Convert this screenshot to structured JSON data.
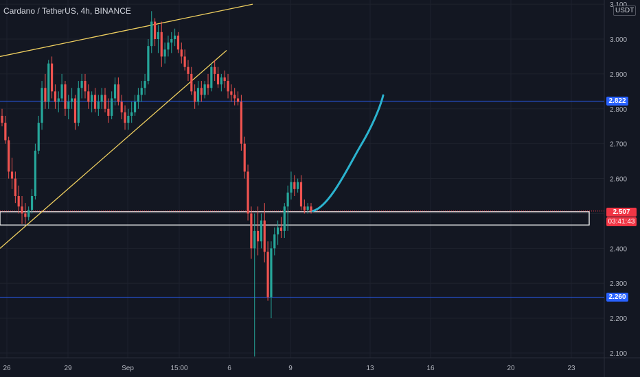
{
  "header": {
    "title": "Cardano / TetherUS, 4h, BINANCE",
    "currency": "USDT"
  },
  "price_tags": {
    "upper_level": "2.822",
    "lower_level": "2.260",
    "last_price": "2.507",
    "countdown": "03:41:43"
  },
  "colors": {
    "background": "#131722",
    "up": "#26a69a",
    "down": "#ef5350",
    "level_line": "#2962ff",
    "trendline": "#f0d060",
    "projection": "#2bb3cf",
    "zone_border": "#ffffff",
    "last_price": "#f23645"
  },
  "chart_data": {
    "type": "candlestick",
    "y_ticks": [
      "3.100",
      "3.000",
      "2.900",
      "2.800",
      "2.700",
      "2.600",
      "2.500",
      "2.400",
      "2.300",
      "2.200",
      "2.100"
    ],
    "x_ticks": [
      "26",
      "29",
      "Sep",
      "15:00",
      "6",
      "9",
      "13",
      "16",
      "20",
      "23"
    ],
    "ylim": [
      2.09,
      3.1
    ],
    "horizontal_levels": [
      2.822,
      2.26
    ],
    "support_zone": [
      2.467,
      2.505
    ],
    "last_price": 2.507,
    "candles": [
      [
        2.78,
        2.8,
        2.75,
        2.76
      ],
      [
        2.76,
        2.78,
        2.7,
        2.71
      ],
      [
        2.71,
        2.72,
        2.6,
        2.62
      ],
      [
        2.62,
        2.66,
        2.57,
        2.6
      ],
      [
        2.6,
        2.62,
        2.53,
        2.55
      ],
      [
        2.55,
        2.58,
        2.5,
        2.52
      ],
      [
        2.52,
        2.55,
        2.47,
        2.5
      ],
      [
        2.5,
        2.53,
        2.47,
        2.49
      ],
      [
        2.49,
        2.52,
        2.48,
        2.51
      ],
      [
        2.51,
        2.57,
        2.5,
        2.55
      ],
      [
        2.55,
        2.7,
        2.54,
        2.68
      ],
      [
        2.68,
        2.78,
        2.67,
        2.76
      ],
      [
        2.76,
        2.88,
        2.74,
        2.86
      ],
      [
        2.86,
        2.9,
        2.8,
        2.82
      ],
      [
        2.82,
        2.94,
        2.8,
        2.93
      ],
      [
        2.93,
        2.95,
        2.83,
        2.85
      ],
      [
        2.85,
        2.87,
        2.8,
        2.82
      ],
      [
        2.82,
        2.85,
        2.79,
        2.83
      ],
      [
        2.83,
        2.9,
        2.82,
        2.87
      ],
      [
        2.87,
        2.88,
        2.78,
        2.8
      ],
      [
        2.8,
        2.84,
        2.77,
        2.82
      ],
      [
        2.82,
        2.86,
        2.8,
        2.83
      ],
      [
        2.83,
        2.84,
        2.74,
        2.76
      ],
      [
        2.76,
        2.88,
        2.75,
        2.86
      ],
      [
        2.86,
        2.9,
        2.83,
        2.88
      ],
      [
        2.88,
        2.9,
        2.83,
        2.85
      ],
      [
        2.85,
        2.87,
        2.8,
        2.82
      ],
      [
        2.82,
        2.85,
        2.79,
        2.84
      ],
      [
        2.84,
        2.86,
        2.79,
        2.8
      ],
      [
        2.8,
        2.84,
        2.78,
        2.82
      ],
      [
        2.82,
        2.86,
        2.8,
        2.84
      ],
      [
        2.84,
        2.86,
        2.79,
        2.8
      ],
      [
        2.8,
        2.83,
        2.76,
        2.78
      ],
      [
        2.78,
        2.85,
        2.77,
        2.83
      ],
      [
        2.83,
        2.89,
        2.81,
        2.87
      ],
      [
        2.87,
        2.89,
        2.81,
        2.82
      ],
      [
        2.82,
        2.84,
        2.77,
        2.79
      ],
      [
        2.79,
        2.81,
        2.74,
        2.76
      ],
      [
        2.76,
        2.8,
        2.74,
        2.78
      ],
      [
        2.78,
        2.82,
        2.76,
        2.79
      ],
      [
        2.79,
        2.84,
        2.78,
        2.82
      ],
      [
        2.82,
        2.86,
        2.8,
        2.84
      ],
      [
        2.84,
        2.88,
        2.82,
        2.86
      ],
      [
        2.86,
        2.9,
        2.84,
        2.88
      ],
      [
        2.88,
        3.0,
        2.87,
        2.98
      ],
      [
        2.98,
        3.08,
        2.96,
        3.05
      ],
      [
        3.05,
        3.06,
        2.98,
        3.0
      ],
      [
        3.0,
        3.04,
        2.96,
        3.02
      ],
      [
        3.02,
        3.05,
        2.92,
        2.95
      ],
      [
        2.95,
        2.99,
        2.93,
        2.97
      ],
      [
        2.97,
        3.01,
        2.95,
        2.99
      ],
      [
        2.99,
        3.02,
        2.96,
        3.0
      ],
      [
        3.0,
        3.03,
        2.98,
        3.01
      ],
      [
        3.01,
        3.02,
        2.96,
        2.97
      ],
      [
        2.97,
        2.99,
        2.93,
        2.95
      ],
      [
        2.95,
        2.97,
        2.91,
        2.92
      ],
      [
        2.92,
        2.94,
        2.88,
        2.9
      ],
      [
        2.9,
        2.92,
        2.84,
        2.85
      ],
      [
        2.85,
        2.87,
        2.8,
        2.82
      ],
      [
        2.82,
        2.88,
        2.81,
        2.86
      ],
      [
        2.86,
        2.88,
        2.82,
        2.84
      ],
      [
        2.84,
        2.88,
        2.83,
        2.87
      ],
      [
        2.87,
        2.9,
        2.84,
        2.86
      ],
      [
        2.86,
        2.93,
        2.85,
        2.92
      ],
      [
        2.92,
        2.94,
        2.88,
        2.9
      ],
      [
        2.9,
        2.92,
        2.86,
        2.87
      ],
      [
        2.87,
        2.9,
        2.85,
        2.89
      ],
      [
        2.89,
        2.91,
        2.86,
        2.88
      ],
      [
        2.88,
        2.9,
        2.83,
        2.85
      ],
      [
        2.85,
        2.87,
        2.82,
        2.84
      ],
      [
        2.84,
        2.86,
        2.81,
        2.83
      ],
      [
        2.83,
        2.85,
        2.81,
        2.82
      ],
      [
        2.82,
        2.84,
        2.68,
        2.7
      ],
      [
        2.7,
        2.72,
        2.6,
        2.62
      ],
      [
        2.62,
        2.64,
        2.48,
        2.5
      ],
      [
        2.5,
        2.52,
        2.37,
        2.4
      ],
      [
        2.4,
        2.5,
        2.09,
        2.45
      ],
      [
        2.45,
        2.52,
        2.38,
        2.42
      ],
      [
        2.42,
        2.5,
        2.4,
        2.48
      ],
      [
        2.48,
        2.53,
        2.36,
        2.39
      ],
      [
        2.39,
        2.42,
        2.25,
        2.26
      ],
      [
        2.26,
        2.42,
        2.2,
        2.4
      ],
      [
        2.4,
        2.46,
        2.38,
        2.44
      ],
      [
        2.44,
        2.48,
        2.41,
        2.46
      ],
      [
        2.46,
        2.49,
        2.43,
        2.45
      ],
      [
        2.45,
        2.53,
        2.43,
        2.52
      ],
      [
        2.52,
        2.58,
        2.45,
        2.56
      ],
      [
        2.56,
        2.62,
        2.54,
        2.59
      ],
      [
        2.59,
        2.61,
        2.55,
        2.57
      ],
      [
        2.57,
        2.6,
        2.56,
        2.59
      ],
      [
        2.59,
        2.61,
        2.51,
        2.52
      ],
      [
        2.52,
        2.54,
        2.5,
        2.51
      ],
      [
        2.51,
        2.53,
        2.5,
        2.52
      ],
      [
        2.52,
        2.53,
        2.5,
        2.507
      ]
    ],
    "annotations": {
      "rising_trendline": [
        [
          2.4,
          2.83
        ]
      ],
      "upper_trendline": [
        [
          2.95,
          3.1
        ]
      ],
      "projected_path": [
        2.507,
        2.823
      ]
    }
  }
}
